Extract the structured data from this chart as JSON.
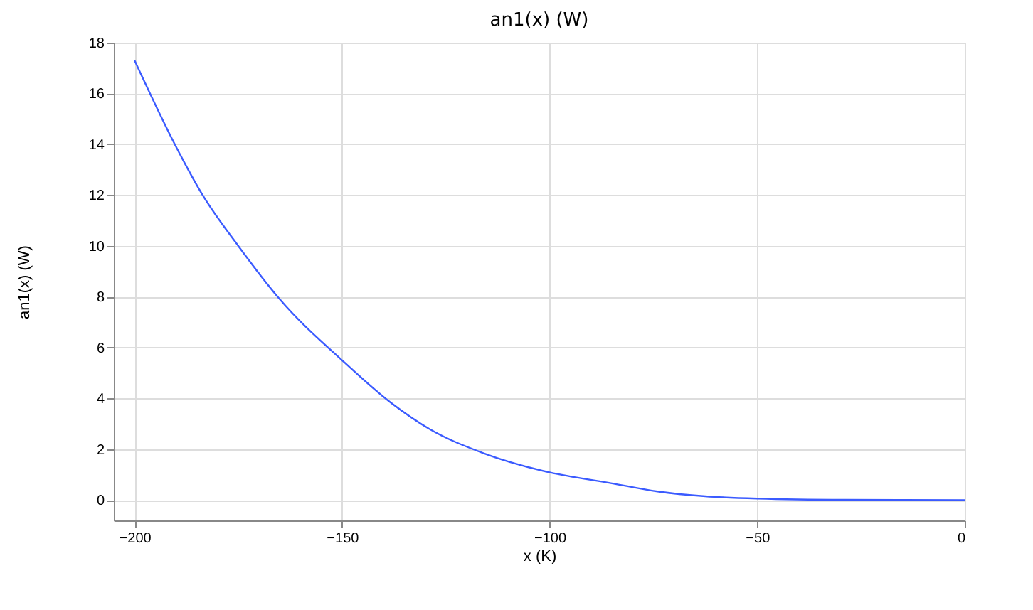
{
  "chart_data": {
    "type": "line",
    "title": "an1(x) (W)",
    "xlabel": "x (K)",
    "ylabel": "an1(x) (W)",
    "x": [
      -200,
      -190,
      -183.6,
      -175,
      -165,
      -150,
      -138,
      -129,
      -116,
      -100,
      -85,
      -74,
      -62.5,
      -50,
      -29,
      0
    ],
    "series": [
      {
        "color": "#3b5bff",
        "values": [
          17.3,
          13.9,
          12.0,
          10.0,
          7.9,
          5.5,
          3.8,
          2.8,
          1.85,
          1.09,
          0.66,
          0.34,
          0.15,
          0.06,
          0.01,
          0
        ]
      }
    ],
    "xlim": [
      -205,
      0
    ],
    "ylim": [
      -0.8,
      18
    ],
    "xticks": [
      -200,
      -150,
      -100,
      -50,
      0
    ],
    "yticks": [
      0,
      2,
      4,
      6,
      8,
      10,
      12,
      14,
      16,
      18
    ],
    "grid": true,
    "line_style": "solid",
    "marker": "none"
  }
}
